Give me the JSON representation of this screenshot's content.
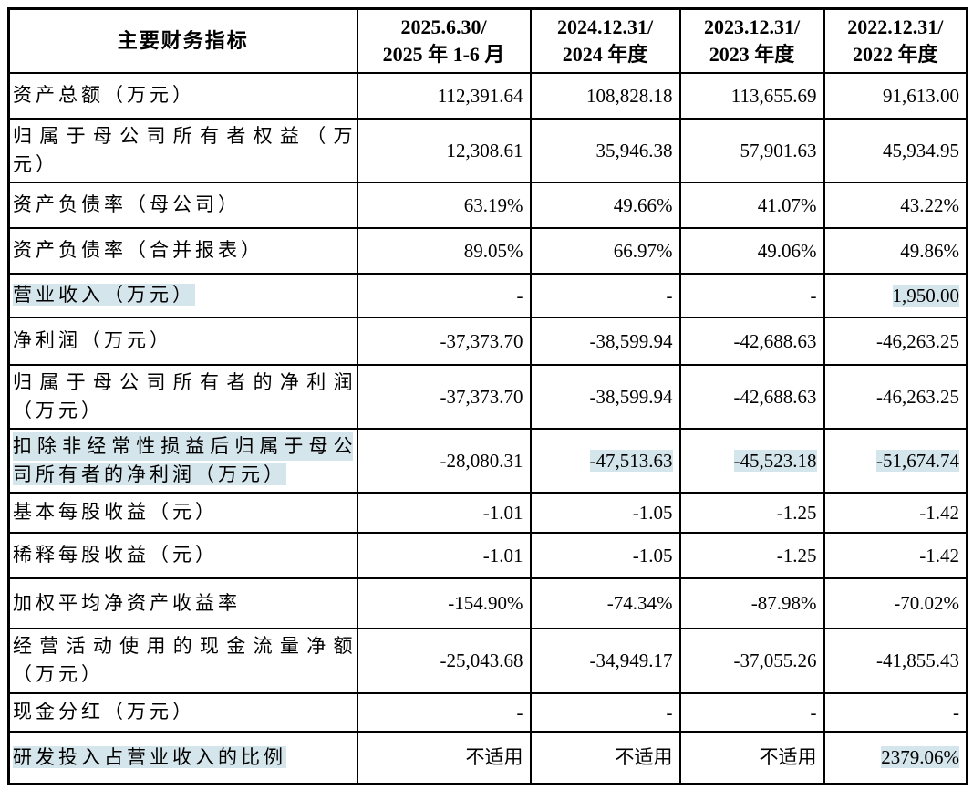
{
  "colors": {
    "highlight": "#d5e5ec",
    "border": "#000000",
    "text": "#000000"
  },
  "table": {
    "header": {
      "indicator": "主要财务指标",
      "periods": [
        {
          "line1": "2025.6.30/",
          "line2": "2025 年 1-6 月"
        },
        {
          "line1": "2024.12.31/",
          "line2": "2024 年度"
        },
        {
          "line1": "2023.12.31/",
          "line2": "2023 年度"
        },
        {
          "line1": "2022.12.31/",
          "line2": "2022 年度"
        }
      ]
    },
    "rows": [
      {
        "label": "资产总额（万元）",
        "values": [
          "112,391.64",
          "108,828.18",
          "113,655.69",
          "91,613.00"
        ]
      },
      {
        "label": "归属于母公司所有者权益（万元）",
        "label_lines": [
          "归属于母公司所有者权益（万",
          "元）"
        ],
        "values": [
          "12,308.61",
          "35,946.38",
          "57,901.63",
          "45,934.95"
        ]
      },
      {
        "label": "资产负债率（母公司）",
        "values": [
          "63.19%",
          "49.66%",
          "41.07%",
          "43.22%"
        ]
      },
      {
        "label": "资产负债率（合并报表）",
        "values": [
          "89.05%",
          "66.97%",
          "49.06%",
          "49.86%"
        ]
      },
      {
        "label": "营业收入（万元）",
        "label_highlight": true,
        "values": [
          "-",
          "-",
          "-",
          "1,950.00"
        ],
        "value_highlights": [
          false,
          false,
          false,
          true
        ]
      },
      {
        "label": "净利润（万元）",
        "values": [
          "-37,373.70",
          "-38,599.94",
          "-42,688.63",
          "-46,263.25"
        ]
      },
      {
        "label": "归属于母公司所有者的净利润（万元）",
        "label_lines": [
          "归属于母公司所有者的净利润",
          "（万元）"
        ],
        "values": [
          "-37,373.70",
          "-38,599.94",
          "-42,688.63",
          "-46,263.25"
        ]
      },
      {
        "label": "扣除非经常性损益后归属于母公司所有者的净利润（万元）",
        "label_lines": [
          "扣除非经常性损益后归属于母公",
          "司所有者的净利润（万元）"
        ],
        "label_highlight": true,
        "values": [
          "-28,080.31",
          "-47,513.63",
          "-45,523.18",
          "-51,674.74"
        ],
        "value_highlights": [
          false,
          true,
          true,
          true
        ]
      },
      {
        "label": "基本每股收益（元）",
        "values": [
          "-1.01",
          "-1.05",
          "-1.25",
          "-1.42"
        ]
      },
      {
        "label": "稀释每股收益（元）",
        "values": [
          "-1.01",
          "-1.05",
          "-1.25",
          "-1.42"
        ]
      },
      {
        "label": "加权平均净资产收益率",
        "values": [
          "-154.90%",
          "-74.34%",
          "-87.98%",
          "-70.02%"
        ]
      },
      {
        "label": "经营活动使用的现金流量净额（万元）",
        "label_lines": [
          "经营活动使用的现金流量净额",
          "（万元）"
        ],
        "values": [
          "-25,043.68",
          "-34,949.17",
          "-37,055.26",
          "-41,855.43"
        ]
      },
      {
        "label": "现金分红（万元）",
        "values": [
          "-",
          "-",
          "-",
          "-"
        ]
      },
      {
        "label": "研发投入占营业收入的比例",
        "label_highlight": true,
        "values": [
          "不适用",
          "不适用",
          "不适用",
          "2379.06%"
        ],
        "value_highlights": [
          false,
          false,
          false,
          true
        ]
      }
    ]
  }
}
